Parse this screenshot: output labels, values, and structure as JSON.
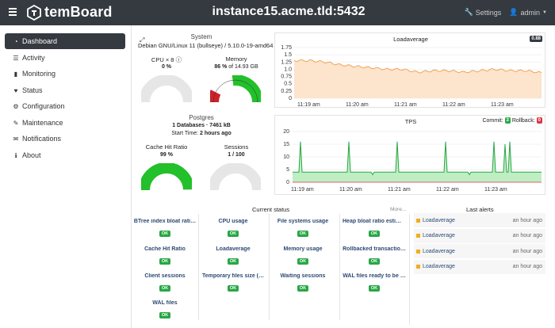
{
  "topbar": {
    "brand": "temBoard",
    "instance": "instance15.acme.tld:5432",
    "settings_label": "Settings",
    "user_label": "admin"
  },
  "sidebar": {
    "items": [
      {
        "label": "Dashboard",
        "icon": "dashboard-icon"
      },
      {
        "label": "Activity",
        "icon": "list-icon"
      },
      {
        "label": "Monitoring",
        "icon": "bar-chart-icon"
      },
      {
        "label": "Status",
        "icon": "heart-icon"
      },
      {
        "label": "Configuration",
        "icon": "gear-icon"
      },
      {
        "label": "Maintenance",
        "icon": "wrench-icon"
      },
      {
        "label": "Notifications",
        "icon": "envelope-icon"
      },
      {
        "label": "About",
        "icon": "info-icon"
      }
    ]
  },
  "system": {
    "title": "System",
    "os": "Debian GNU/Linux 11 (bullseye) / 5.10.0-19-amd64",
    "cpu_label": "CPU × 8",
    "cpu_value": "0 %",
    "cpu_pct": 0,
    "memory_label": "Memory",
    "memory_value_bold": "86 %",
    "memory_value_rest": " of 14.93 GB",
    "memory_segments": [
      0.15,
      0.31,
      0.54
    ]
  },
  "postgres": {
    "title": "Postgres",
    "databases": "1 Databases · 7461 kB",
    "start_label": "Start Time: ",
    "start_value": "2 hours ago",
    "cache_label": "Cache Hit Ratio",
    "cache_value": "99 %",
    "cache_pct": 0.99,
    "sessions_label": "Sessions",
    "sessions_value": "1 / 100",
    "sessions_pct": 0.01
  },
  "loadavg_chart": {
    "title": "Loadaverage",
    "current_badge": "0.88",
    "yticks": [
      "1.75",
      "1.5",
      "1.25",
      "1.0",
      "0.75",
      "0.5",
      "0.25",
      "0"
    ],
    "xticks": [
      "11:19 am",
      "11:20 am",
      "11:21 am",
      "11:22 am",
      "11:23 am"
    ],
    "color": "#f0a45a"
  },
  "tps_chart": {
    "title": "TPS",
    "commit_label": "Commit:",
    "commit_badge": "3",
    "rollback_label": "Rollback:",
    "rollback_badge": "0",
    "yticks": [
      "20",
      "15",
      "10",
      "5",
      "0"
    ],
    "xticks": [
      "11:19 am",
      "11:20 am",
      "11:21 am",
      "11:22 am",
      "11:23 am"
    ],
    "commit_color": "#28a745",
    "rollback_color": "#dc3545"
  },
  "chart_data": [
    {
      "type": "area",
      "title": "Loadaverage",
      "x": [
        "11:18:40",
        "11:19:00",
        "11:19:20",
        "11:19:40",
        "11:20:00",
        "11:20:20",
        "11:20:40",
        "11:21:00",
        "11:21:20",
        "11:21:40",
        "11:22:00",
        "11:22:20",
        "11:22:40",
        "11:23:00",
        "11:23:20",
        "11:23:40",
        "11:24:00"
      ],
      "series": [
        {
          "values": [
            1.3,
            1.3,
            1.25,
            1.15,
            1.1,
            1.05,
            1.0,
            1.0,
            0.9,
            0.95,
            0.95,
            0.9,
            0.95,
            1.0,
            0.95,
            0.95,
            0.88
          ]
        }
      ],
      "ylim": [
        0,
        1.75
      ]
    },
    {
      "type": "area",
      "title": "TPS",
      "xticks": [
        "11:19 am",
        "11:20 am",
        "11:21 am",
        "11:22 am",
        "11:23 am"
      ],
      "series": [
        {
          "name": "Commit",
          "spikes": [
            16,
            4,
            16,
            3,
            16,
            4,
            16,
            3,
            16,
            15,
            16
          ],
          "baseline": 4
        },
        {
          "name": "Rollback",
          "values": [
            0
          ]
        }
      ],
      "ylim": [
        0,
        20
      ]
    }
  ],
  "current_status": {
    "title": "Current status",
    "more_label": "More...",
    "ok_label": "OK",
    "checks": [
      "BTree index bloat rati…",
      "CPU usage",
      "File systems usage",
      "Heap bloat ratio estim…",
      "Cache Hit Ratio",
      "Loadaverage",
      "Memory usage",
      "Rollbacked transactio…",
      "Client sessions",
      "Temporary files size (…",
      "Waiting sessions",
      "WAL files ready to be …",
      "WAL files"
    ]
  },
  "last_alerts": {
    "title": "Last alerts",
    "items": [
      {
        "name": "Loadaverage",
        "time": "an hour ago"
      },
      {
        "name": "Loadaverage",
        "time": "an hour ago"
      },
      {
        "name": "Loadaverage",
        "time": "an hour ago"
      },
      {
        "name": "Loadaverage",
        "time": "an hour ago"
      }
    ]
  }
}
